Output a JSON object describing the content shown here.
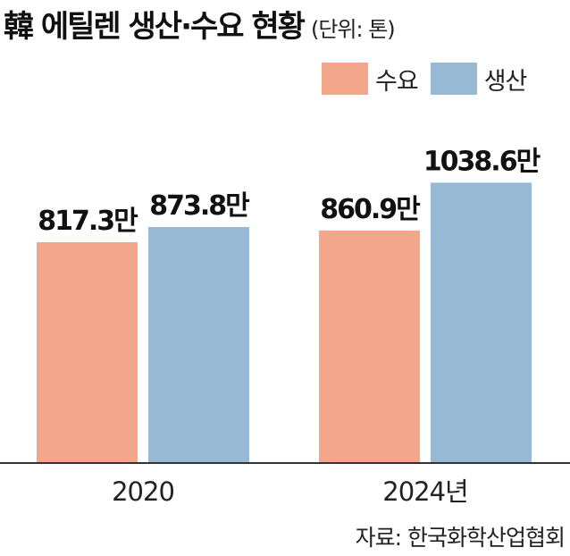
{
  "header": {
    "title": "韓 에틸렌 생산·수요 현황",
    "unit": "(단위: 톤)"
  },
  "source": "자료: 한국화학산업협회",
  "colors": {
    "demand": "#f4a68b",
    "production": "#98b9d4",
    "axis": "#333333"
  },
  "chart_data": {
    "type": "bar",
    "title": "韓 에틸렌 생산·수요 현황",
    "unit": "(단위: 톤)",
    "categories": [
      "2020",
      "2024년"
    ],
    "series": [
      {
        "name": "수요",
        "values": [
          8173000,
          8609000
        ],
        "labels": [
          "817.3만",
          "860.9만"
        ]
      },
      {
        "name": "생산",
        "values": [
          8738000,
          10386000
        ],
        "labels": [
          "873.8만",
          "1038.6만"
        ]
      }
    ],
    "legend_position": "top-right",
    "grid": false
  }
}
